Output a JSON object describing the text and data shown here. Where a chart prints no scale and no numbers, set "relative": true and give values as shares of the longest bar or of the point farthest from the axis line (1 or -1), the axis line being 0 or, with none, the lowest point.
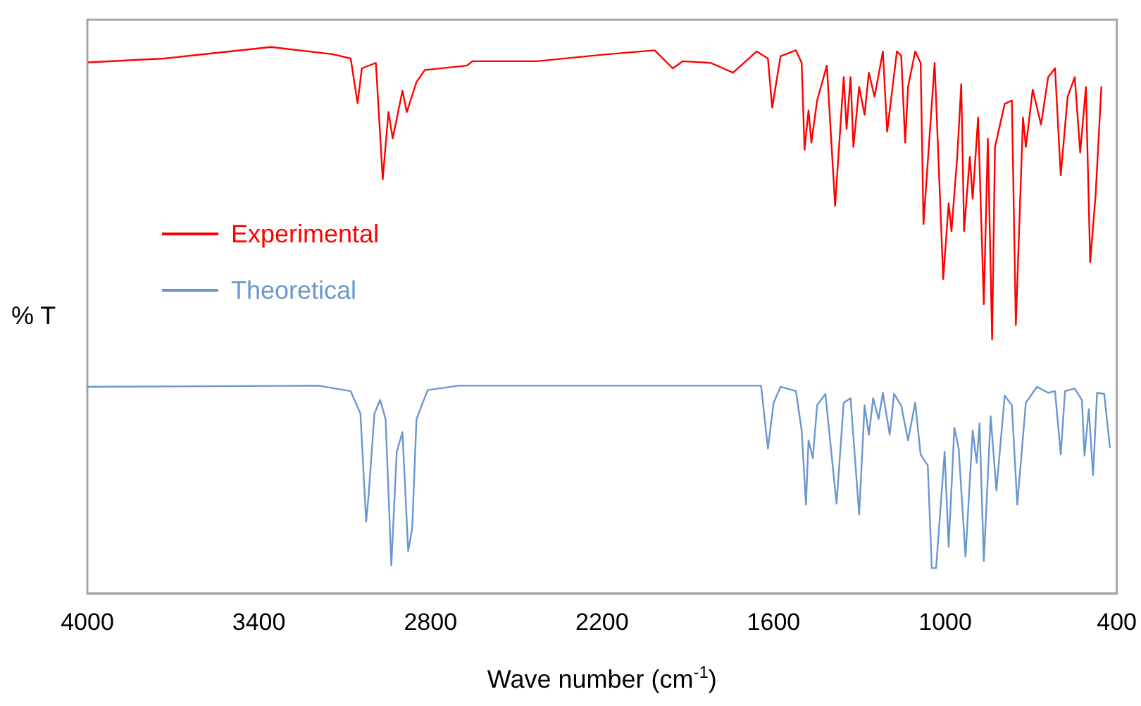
{
  "chart_data": {
    "type": "line",
    "xlabel": "Wave number (cm$^{-1}$)",
    "ylabel": "% T",
    "relative": true,
    "xlim": [
      4000,
      400
    ],
    "xticks": [
      4000,
      3400,
      2800,
      2200,
      1600,
      1000,
      400
    ],
    "grid": false,
    "legend": "left",
    "marker": "none",
    "line_style": "solid",
    "series": [
      {
        "name": "Experimental",
        "color": "#ff0000",
        "x": [
          3995,
          3731,
          3358,
          3143,
          3079,
          3055,
          3040,
          2991,
          2967,
          2947,
          2932,
          2898,
          2883,
          2849,
          2820,
          2673,
          2653,
          2428,
          2198,
          2016,
          1953,
          1918,
          1820,
          1742,
          1659,
          1620,
          1605,
          1576,
          1522,
          1502,
          1492,
          1478,
          1468,
          1448,
          1414,
          1385,
          1355,
          1345,
          1331,
          1321,
          1301,
          1282,
          1267,
          1247,
          1218,
          1203,
          1169,
          1154,
          1140,
          1130,
          1105,
          1086,
          1076,
          1037,
          1007,
          988,
          978,
          958,
          944,
          934,
          914,
          904,
          885,
          865,
          851,
          836,
          826,
          792,
          767,
          753,
          728,
          718,
          694,
          665,
          640,
          616,
          596,
          572,
          547,
          528,
          508,
          493,
          474,
          454
        ],
        "values": [
          0.972,
          0.979,
          1.0,
          0.987,
          0.979,
          0.897,
          0.961,
          0.971,
          0.758,
          0.881,
          0.833,
          0.92,
          0.881,
          0.936,
          0.958,
          0.966,
          0.974,
          0.974,
          0.986,
          0.994,
          0.961,
          0.974,
          0.971,
          0.953,
          0.992,
          0.979,
          0.889,
          0.983,
          0.994,
          0.971,
          0.812,
          0.884,
          0.825,
          0.902,
          0.966,
          0.709,
          0.945,
          0.85,
          0.945,
          0.817,
          0.927,
          0.876,
          0.953,
          0.909,
          0.992,
          0.845,
          0.992,
          0.984,
          0.825,
          0.927,
          0.992,
          0.971,
          0.676,
          0.971,
          0.575,
          0.714,
          0.663,
          0.799,
          0.932,
          0.663,
          0.799,
          0.722,
          0.871,
          0.529,
          0.832,
          0.465,
          0.817,
          0.896,
          0.902,
          0.491,
          0.871,
          0.817,
          0.922,
          0.858,
          0.945,
          0.961,
          0.765,
          0.909,
          0.945,
          0.807,
          0.927,
          0.606,
          0.73,
          0.927
        ]
      },
      {
        "name": "Theoretical",
        "color": "#6a97cf",
        "x": [
          4000,
          3192,
          3079,
          3045,
          3025,
          3016,
          2996,
          2976,
          2957,
          2937,
          2918,
          2898,
          2878,
          2864,
          2849,
          2810,
          2702,
          1644,
          1620,
          1600,
          1576,
          1522,
          1502,
          1487,
          1478,
          1463,
          1448,
          1419,
          1380,
          1355,
          1331,
          1301,
          1282,
          1267,
          1252,
          1233,
          1218,
          1194,
          1179,
          1154,
          1130,
          1105,
          1086,
          1061,
          1047,
          1032,
          1002,
          988,
          968,
          953,
          929,
          904,
          890,
          880,
          865,
          841,
          821,
          792,
          767,
          748,
          718,
          679,
          640,
          616,
          596,
          581,
          547,
          522,
          513,
          498,
          483,
          469,
          444,
          424
        ],
        "values": [
          0.378,
          0.38,
          0.37,
          0.329,
          0.131,
          0.182,
          0.329,
          0.354,
          0.319,
          0.051,
          0.259,
          0.295,
          0.077,
          0.118,
          0.319,
          0.372,
          0.38,
          0.38,
          0.265,
          0.349,
          0.378,
          0.37,
          0.298,
          0.162,
          0.28,
          0.247,
          0.344,
          0.365,
          0.164,
          0.349,
          0.357,
          0.144,
          0.344,
          0.29,
          0.357,
          0.319,
          0.367,
          0.29,
          0.365,
          0.344,
          0.28,
          0.349,
          0.254,
          0.234,
          0.046,
          0.046,
          0.259,
          0.085,
          0.303,
          0.265,
          0.067,
          0.298,
          0.239,
          0.311,
          0.059,
          0.324,
          0.188,
          0.362,
          0.344,
          0.162,
          0.349,
          0.378,
          0.367,
          0.37,
          0.254,
          0.37,
          0.375,
          0.354,
          0.252,
          0.337,
          0.216,
          0.367,
          0.365,
          0.267
        ]
      }
    ]
  }
}
